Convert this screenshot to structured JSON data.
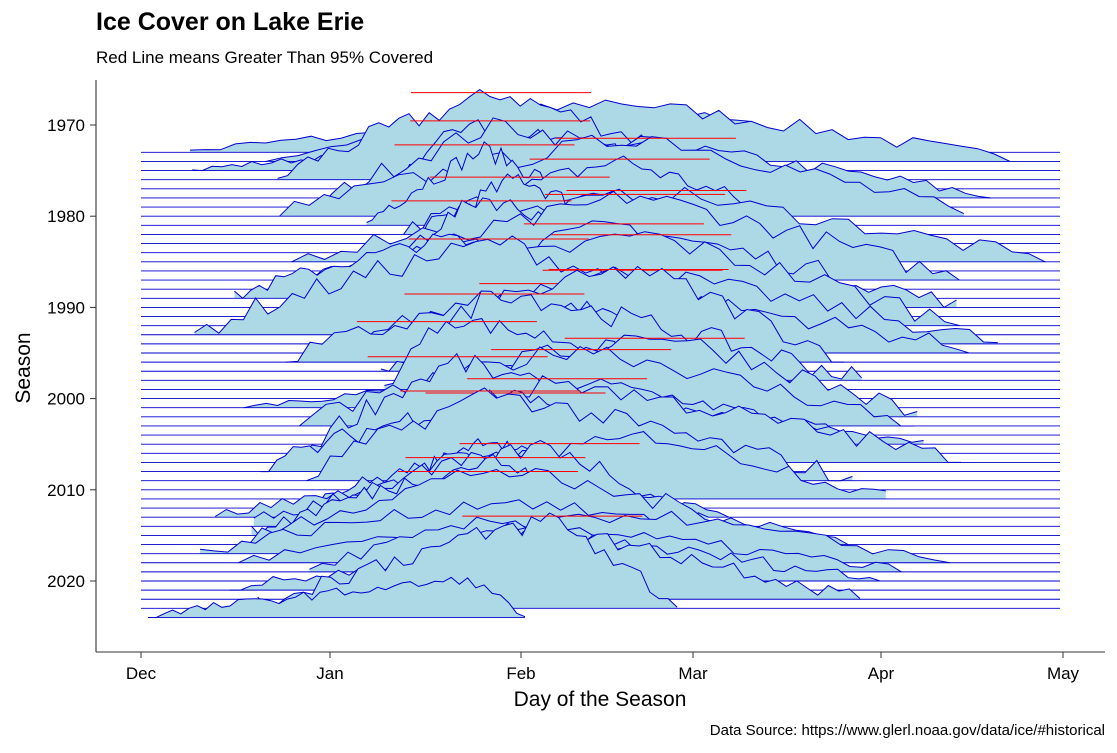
{
  "title": "Ice Cover on Lake Erie",
  "subtitle": "Red Line means Greater Than 95% Covered",
  "caption": "Data Source: https://www.glerl.noaa.gov/data/ice/#historical",
  "chart_data": {
    "type": "area",
    "xlabel": "Day of the Season",
    "ylabel": "Season",
    "x_ticks": [
      "Dec",
      "Jan",
      "Feb",
      "Mar",
      "Apr",
      "May"
    ],
    "y_ticks": [
      1970,
      1980,
      1990,
      2000,
      2010,
      2020
    ],
    "ylim": [
      1965,
      2025
    ],
    "seasons": [
      1973,
      2024
    ],
    "ridge_fill": "#add8e6",
    "ridge_line": "#0000cd",
    "high_cover_line": "#ff0000",
    "high_cover_threshold": "> 95% covered",
    "grid": false,
    "legend": "none"
  }
}
